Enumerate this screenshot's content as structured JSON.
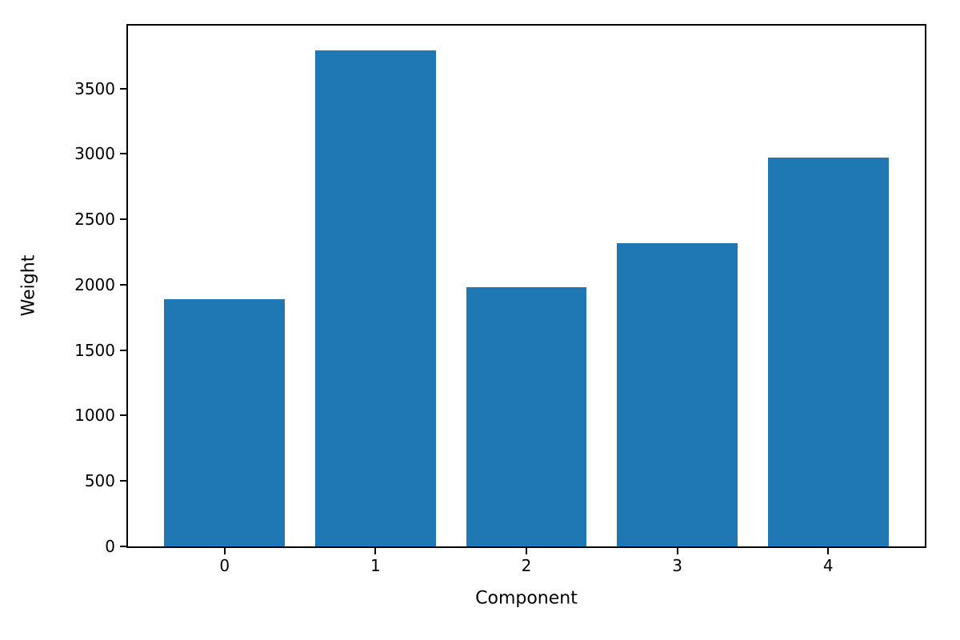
{
  "chart_data": {
    "type": "bar",
    "title": "",
    "xlabel": "Component",
    "ylabel": "Weight",
    "categories": [
      "0",
      "1",
      "2",
      "3",
      "4"
    ],
    "values": [
      1890,
      3790,
      1980,
      2320,
      2970
    ],
    "yticks": [
      0,
      500,
      1000,
      1500,
      2000,
      2500,
      3000,
      3500
    ],
    "ylim": [
      0,
      3980
    ],
    "xlim": [
      -0.64,
      4.64
    ],
    "bar_width": 0.8,
    "bar_color": "#1f77b4",
    "grid": false,
    "legend": "none",
    "background_color": "#ffffff",
    "text_color": "#000000"
  }
}
